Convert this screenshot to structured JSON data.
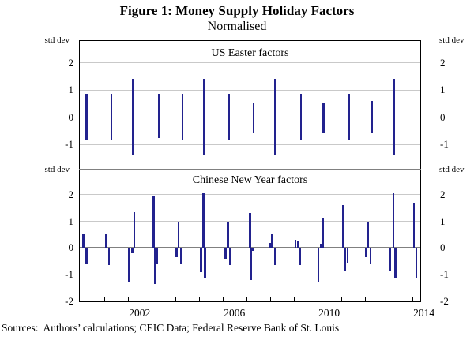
{
  "figure": {
    "title": "Figure 1: Money Supply Holiday Factors",
    "subtitle": "Normalised",
    "source_note": "Sources:  Authors’ calculations; CEIC Data; Federal Reserve Bank of St. Louis"
  },
  "colors": {
    "bar": "#22228e",
    "gridline": "#c9c9c9",
    "zero_gray": "#808080",
    "frame": "#000000"
  },
  "x_axis": {
    "range_years": [
      1999.94,
      2014.38
    ],
    "tick_years": [
      2001,
      2002,
      2003,
      2004,
      2005,
      2006,
      2007,
      2008,
      2009,
      2010,
      2011,
      2012,
      2013,
      2014
    ],
    "labels": [
      {
        "text": "2002",
        "year": 2002.5
      },
      {
        "text": "2006",
        "year": 2006.5
      },
      {
        "text": "2010",
        "year": 2010.5
      },
      {
        "text": "2014",
        "year": 2014.5
      }
    ]
  },
  "chart_data": [
    {
      "type": "bar",
      "panel": "top",
      "title": "US Easter factors",
      "unit_label": "std dev",
      "ylim": [
        -1.89,
        2.8
      ],
      "yticks": [
        2,
        1,
        0,
        -1
      ],
      "gridlines": [
        2,
        1,
        -1
      ],
      "zero_line": "dotted-black",
      "legend": "none",
      "bars": [
        {
          "x": 2000.22,
          "v": 0.85
        },
        {
          "x": 2000.22,
          "v": -0.85
        },
        {
          "x": 2001.28,
          "v": 0.85
        },
        {
          "x": 2001.28,
          "v": -0.85
        },
        {
          "x": 2002.18,
          "v": 1.4
        },
        {
          "x": 2002.18,
          "v": -1.4
        },
        {
          "x": 2003.28,
          "v": 0.85
        },
        {
          "x": 2003.28,
          "v": -0.75
        },
        {
          "x": 2004.28,
          "v": 0.85
        },
        {
          "x": 2004.28,
          "v": -0.85
        },
        {
          "x": 2005.18,
          "v": 1.4
        },
        {
          "x": 2005.18,
          "v": -1.4
        },
        {
          "x": 2006.22,
          "v": 0.85
        },
        {
          "x": 2006.22,
          "v": -0.85
        },
        {
          "x": 2007.27,
          "v": 0.55
        },
        {
          "x": 2007.27,
          "v": -0.6
        },
        {
          "x": 2008.2,
          "v": 1.4
        },
        {
          "x": 2008.2,
          "v": -1.4
        },
        {
          "x": 2009.28,
          "v": 0.85
        },
        {
          "x": 2009.28,
          "v": -0.85
        },
        {
          "x": 2010.22,
          "v": 0.55
        },
        {
          "x": 2010.22,
          "v": -0.6
        },
        {
          "x": 2011.3,
          "v": 0.85
        },
        {
          "x": 2011.3,
          "v": -0.85
        },
        {
          "x": 2012.27,
          "v": 0.6
        },
        {
          "x": 2012.27,
          "v": -0.6
        },
        {
          "x": 2013.22,
          "v": 1.4
        },
        {
          "x": 2013.22,
          "v": -1.4
        }
      ]
    },
    {
      "type": "bar",
      "panel": "bottom",
      "title": "Chinese New Year factors",
      "unit_label": "std dev",
      "ylim": [
        -1.97,
        2.91
      ],
      "yticks": [
        2,
        1,
        0,
        -1,
        -2
      ],
      "gridlines": [
        2,
        1,
        -1
      ],
      "zero_line": "solid-gray",
      "legend": "none",
      "bars": [
        {
          "x": 2000.09,
          "v": 0.55
        },
        {
          "x": 2000.22,
          "v": -0.6
        },
        {
          "x": 2001.05,
          "v": 0.55
        },
        {
          "x": 2001.17,
          "v": -0.65
        },
        {
          "x": 2002.02,
          "v": -1.3
        },
        {
          "x": 2002.15,
          "v": -0.2
        },
        {
          "x": 2002.24,
          "v": 1.35
        },
        {
          "x": 2003.05,
          "v": 1.95
        },
        {
          "x": 2003.12,
          "v": -1.35
        },
        {
          "x": 2003.2,
          "v": -0.6
        },
        {
          "x": 2004.03,
          "v": -0.35
        },
        {
          "x": 2004.11,
          "v": 0.95
        },
        {
          "x": 2004.21,
          "v": -0.6
        },
        {
          "x": 2005.06,
          "v": -0.9
        },
        {
          "x": 2005.16,
          "v": 2.05
        },
        {
          "x": 2005.22,
          "v": -1.15
        },
        {
          "x": 2006.09,
          "v": -0.4
        },
        {
          "x": 2006.19,
          "v": 0.95
        },
        {
          "x": 2006.29,
          "v": -0.65
        },
        {
          "x": 2007.13,
          "v": 1.3
        },
        {
          "x": 2007.17,
          "v": -1.2
        },
        {
          "x": 2007.25,
          "v": -0.1
        },
        {
          "x": 2007.98,
          "v": 0.2
        },
        {
          "x": 2008.06,
          "v": 0.5
        },
        {
          "x": 2008.18,
          "v": -0.65
        },
        {
          "x": 2009.04,
          "v": 0.3
        },
        {
          "x": 2009.14,
          "v": 0.25
        },
        {
          "x": 2009.23,
          "v": -0.65
        },
        {
          "x": 2010.01,
          "v": -1.3
        },
        {
          "x": 2010.11,
          "v": 0.15
        },
        {
          "x": 2010.19,
          "v": 1.15
        },
        {
          "x": 2011.04,
          "v": 1.6
        },
        {
          "x": 2011.14,
          "v": -0.85
        },
        {
          "x": 2011.24,
          "v": -0.55
        },
        {
          "x": 2012.01,
          "v": -0.35
        },
        {
          "x": 2012.09,
          "v": 0.95
        },
        {
          "x": 2012.21,
          "v": -0.6
        },
        {
          "x": 2013.04,
          "v": -0.85
        },
        {
          "x": 2013.18,
          "v": 2.05
        },
        {
          "x": 2013.26,
          "v": -1.1
        },
        {
          "x": 2014.04,
          "v": 1.7
        },
        {
          "x": 2014.14,
          "v": -1.1
        }
      ]
    }
  ]
}
